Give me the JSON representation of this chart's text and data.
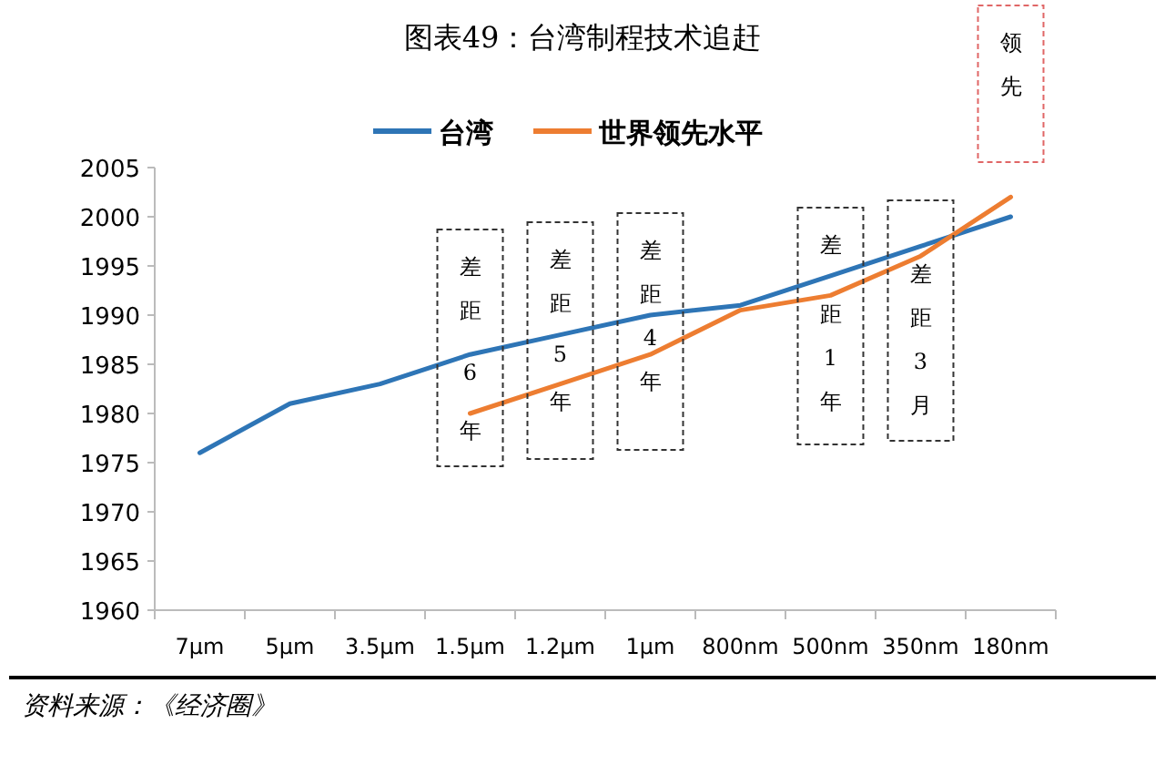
{
  "chart_data": {
    "type": "line",
    "title": "图表49：台湾制程技术追赶",
    "categories": [
      "7μm",
      "5μm",
      "3.5μm",
      "1.5μm",
      "1.2μm",
      "1μm",
      "800nm",
      "500nm",
      "350nm",
      "180nm"
    ],
    "series": [
      {
        "name": "台湾",
        "color": "#2e75b6",
        "values": [
          1976,
          1981,
          1983,
          1986,
          1988,
          1990,
          1991,
          1994,
          1997,
          2000
        ]
      },
      {
        "name": "世界领先水平",
        "color": "#ed7d31",
        "values": [
          null,
          null,
          null,
          1980,
          1983,
          1986,
          1990.5,
          1992,
          1996,
          2002
        ]
      }
    ],
    "ylim": [
      1960,
      2005
    ],
    "yticks": [
      1960,
      1965,
      1970,
      1975,
      1980,
      1985,
      1990,
      1995,
      2000,
      2005
    ],
    "grid": false,
    "legend": "top",
    "marker": "none",
    "line_style": "solid",
    "annotations": [
      "差距6年",
      "差距5年",
      "差距4年",
      "差距1年",
      "差距3月",
      "领先",
      "资料来源：《经济圈》"
    ]
  }
}
